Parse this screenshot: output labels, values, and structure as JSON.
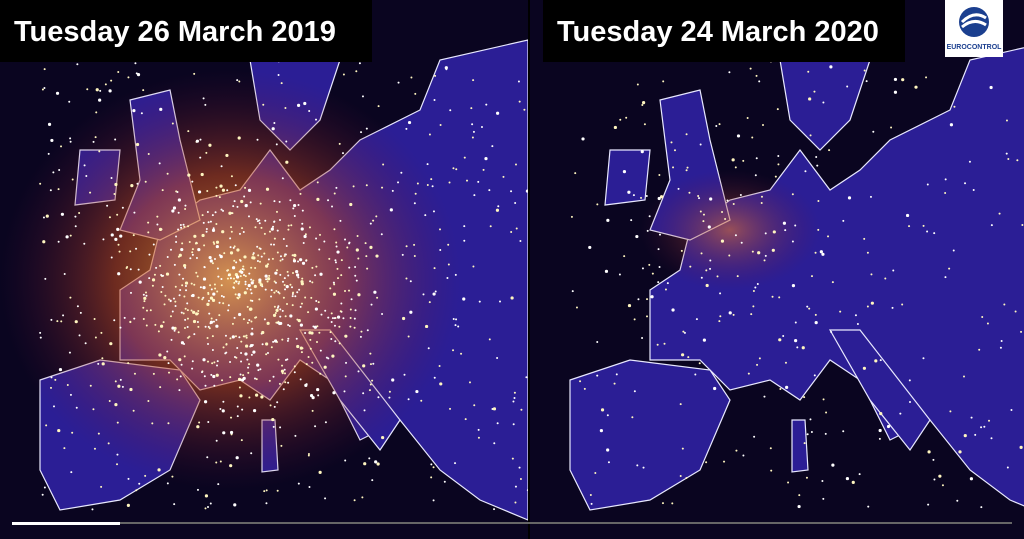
{
  "panels": [
    {
      "title": "Tuesday 26 March 2019"
    },
    {
      "title": "Tuesday 24 March 2020"
    }
  ],
  "logo": {
    "text": "EUROCONTROL"
  }
}
